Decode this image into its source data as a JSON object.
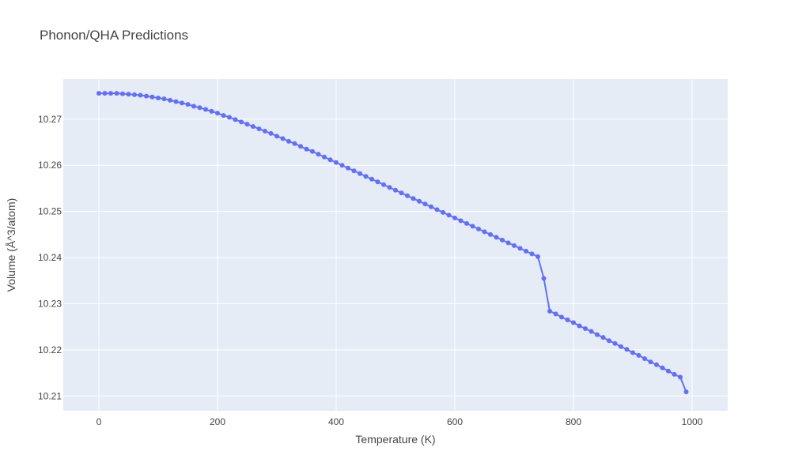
{
  "chart_data": {
    "type": "line",
    "title": "Phonon/QHA Predictions",
    "xlabel": "Temperature (K)",
    "ylabel": "Volume (Å^3/atom)",
    "xlim": [
      -60,
      1060
    ],
    "ylim": [
      10.2068,
      10.2787
    ],
    "x_ticks": [
      0,
      200,
      400,
      600,
      800,
      1000
    ],
    "y_ticks": [
      10.21,
      10.22,
      10.23,
      10.24,
      10.25,
      10.26,
      10.27
    ],
    "grid": true,
    "legend": "none",
    "colors": {
      "series": "#636efa",
      "plot_bg": "#e5ecf6",
      "grid": "#ffffff"
    },
    "series": [
      {
        "mode": "lines+markers",
        "x": [
          0,
          10,
          20,
          30,
          40,
          50,
          60,
          70,
          80,
          90,
          100,
          110,
          120,
          130,
          140,
          150,
          160,
          170,
          180,
          190,
          200,
          210,
          220,
          230,
          240,
          250,
          260,
          270,
          280,
          290,
          300,
          310,
          320,
          330,
          340,
          350,
          360,
          370,
          380,
          390,
          400,
          410,
          420,
          430,
          440,
          450,
          460,
          470,
          480,
          490,
          500,
          510,
          520,
          530,
          540,
          550,
          560,
          570,
          580,
          590,
          600,
          610,
          620,
          630,
          640,
          650,
          660,
          670,
          680,
          690,
          700,
          710,
          720,
          730,
          740,
          750,
          760,
          770,
          780,
          790,
          800,
          810,
          820,
          830,
          840,
          850,
          860,
          870,
          880,
          890,
          900,
          910,
          920,
          930,
          940,
          950,
          960,
          970,
          980,
          990
        ],
        "y": [
          10.2756,
          10.2756,
          10.2756,
          10.2756,
          10.2755,
          10.2754,
          10.2753,
          10.2752,
          10.275,
          10.2748,
          10.2746,
          10.2744,
          10.2741,
          10.2738,
          10.2735,
          10.2732,
          10.2728,
          10.2725,
          10.2721,
          10.2717,
          10.2713,
          10.2708,
          10.2704,
          10.2699,
          10.2694,
          10.2689,
          10.2684,
          10.2679,
          10.2674,
          10.2669,
          10.2663,
          10.2658,
          10.2652,
          10.2647,
          10.2641,
          10.2635,
          10.263,
          10.2624,
          10.2618,
          10.2612,
          10.2606,
          10.26,
          10.2594,
          10.2588,
          10.2582,
          10.2576,
          10.257,
          10.2564,
          10.2558,
          10.2552,
          10.2546,
          10.254,
          10.2534,
          10.2528,
          10.2522,
          10.2516,
          10.251,
          10.2504,
          10.2498,
          10.2492,
          10.2486,
          10.248,
          10.2474,
          10.2468,
          10.2462,
          10.2456,
          10.245,
          10.2444,
          10.2438,
          10.2432,
          10.2426,
          10.242,
          10.2414,
          10.2408,
          10.2402,
          10.2355,
          10.2284,
          10.2278,
          10.2271,
          10.2265,
          10.2259,
          10.2252,
          10.2246,
          10.224,
          10.2233,
          10.2227,
          10.222,
          10.2214,
          10.2207,
          10.2201,
          10.2194,
          10.2188,
          10.2181,
          10.2174,
          10.2168,
          10.2161,
          10.2154,
          10.2147,
          10.2141,
          10.2109
        ]
      }
    ]
  }
}
